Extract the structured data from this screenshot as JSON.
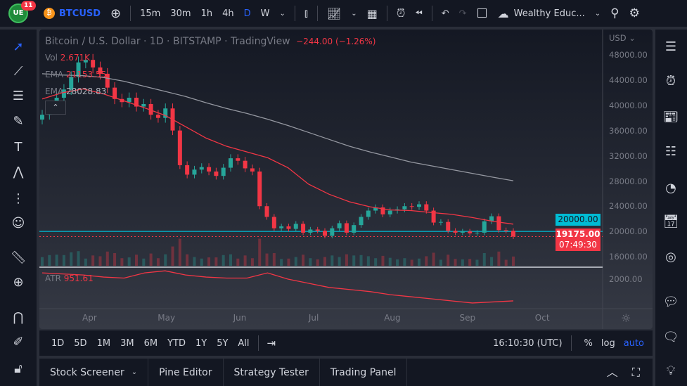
{
  "toolbar": {
    "notifications": "11",
    "symbol": "BTCUSD",
    "intervals": [
      "15m",
      "30m",
      "1h",
      "4h",
      "D",
      "W"
    ],
    "active_interval": "D",
    "account": "Wealthy Educ...",
    "accent": "#2962ff"
  },
  "legend": {
    "title": "Bitcoin / U.S. Dollar · 1D · BITSTAMP · TradingView",
    "change": "−244.00 (−1.26%)",
    "vol_label": "Vol",
    "vol_value": "2.671K",
    "ema1_label": "EMA",
    "ema1_value": "21153.55",
    "ema2_label": "EMA",
    "ema2_value": "28028.83",
    "atr_label": "ATR",
    "atr_value": "951.61"
  },
  "price_axis": {
    "currency": "USD",
    "ticks": [
      "48000.00",
      "44000.00",
      "40000.00",
      "36000.00",
      "32000.00",
      "28000.00",
      "24000.00",
      "20000.00",
      "16000.00"
    ],
    "hline_label": "20000.00",
    "last_price": "19175.00",
    "countdown": "07:49:30",
    "atr_tick": "2000.00"
  },
  "time_axis": {
    "labels": [
      "Apr",
      "May",
      "Jun",
      "Jul",
      "Aug",
      "Sep",
      "Oct"
    ]
  },
  "chart_data": {
    "type": "candlestick",
    "ylim": [
      16000,
      48000
    ],
    "colors": {
      "up": "#26a69a",
      "down": "#f23645",
      "ema_fast": "#f23645",
      "ema_slow": "#9598a1",
      "hline": "#00bcd4"
    },
    "horizontal_line": 20000,
    "closes": [
      38500,
      39800,
      41200,
      42500,
      44500,
      46800,
      47200,
      46000,
      45000,
      42800,
      41000,
      40500,
      41200,
      39800,
      40200,
      38500,
      38000,
      39500,
      36000,
      30500,
      29000,
      29800,
      30200,
      29500,
      28800,
      30100,
      31600,
      31200,
      30000,
      29500,
      24000,
      22300,
      20500,
      20800,
      20400,
      21200,
      19800,
      20300,
      20100,
      19300,
      20500,
      21300,
      19800,
      21000,
      22300,
      23300,
      23800,
      22700,
      23300,
      23500,
      24000,
      23900,
      24300,
      23300,
      21400,
      21500,
      20100,
      19800,
      20000,
      19700,
      19800,
      21600,
      22400,
      20200,
      20100,
      19175
    ],
    "ema_fast": [
      41000,
      42000,
      42600,
      41800,
      40700,
      39600,
      38400,
      36600,
      34800,
      33500,
      32600,
      31700,
      30100,
      27500,
      25900,
      24700,
      23900,
      23400,
      23300,
      23000,
      22700,
      22200,
      21600,
      21150
    ],
    "ema_slow": [
      45000,
      44800,
      44700,
      44400,
      43800,
      43000,
      42200,
      41400,
      40400,
      39500,
      38700,
      37800,
      36800,
      35700,
      34600,
      33500,
      32600,
      31800,
      31000,
      30400,
      29800,
      29200,
      28600,
      28028
    ],
    "atr": [
      2300,
      2250,
      2200,
      2100,
      2050,
      2300,
      2400,
      2200,
      2100,
      2050,
      2050,
      2300,
      2000,
      1800,
      1600,
      1500,
      1400,
      1250,
      1150,
      1050,
      950,
      850,
      900,
      952
    ],
    "atr_ylim": [
      500,
      2600
    ]
  },
  "bottom": {
    "ranges": [
      "1D",
      "5D",
      "1M",
      "3M",
      "6M",
      "YTD",
      "1Y",
      "5Y",
      "All"
    ],
    "clock": "16:10:30 (UTC)",
    "pct": "%",
    "log": "log",
    "auto": "auto"
  },
  "panels": [
    "Stock Screener",
    "Pine Editor",
    "Strategy Tester",
    "Trading Panel"
  ]
}
